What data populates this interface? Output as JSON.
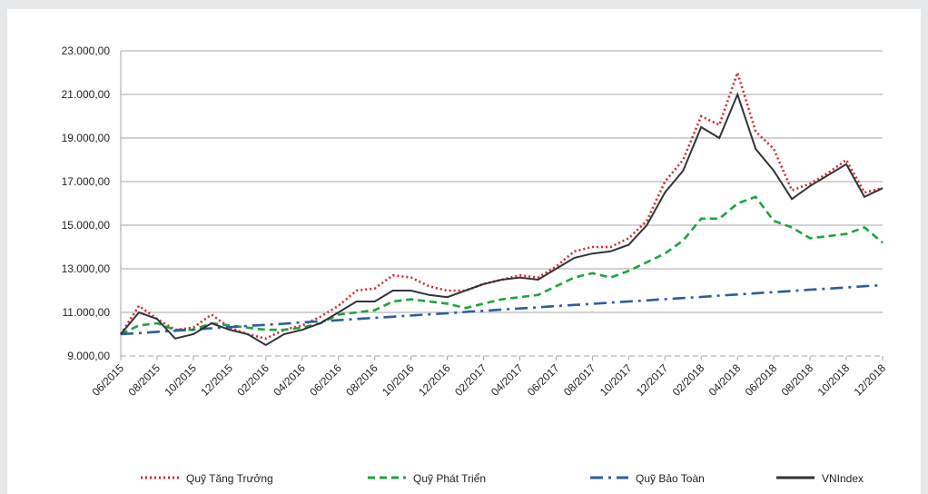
{
  "chart_data": {
    "type": "line",
    "categories": [
      "06/2015",
      null,
      "08/2015",
      null,
      "10/2015",
      null,
      "12/2015",
      null,
      "02/2016",
      null,
      "04/2016",
      null,
      "06/2016",
      null,
      "08/2016",
      null,
      "10/2016",
      null,
      "12/2016",
      null,
      "02/2017",
      null,
      "04/2017",
      null,
      "06/2017",
      null,
      "08/2017",
      null,
      "10/2017",
      null,
      "12/2017",
      null,
      "02/2018",
      null,
      "04/2018",
      null,
      "06/2018",
      null,
      "08/2018",
      null,
      "10/2018",
      null,
      "12/2018"
    ],
    "series": [
      {
        "name": "Quỹ Tăng Trưởng",
        "color": "#d7262b",
        "dash": "dotted",
        "values": [
          10000,
          11300,
          10700,
          10200,
          10300,
          10900,
          10300,
          10000,
          9800,
          10200,
          10400,
          10800,
          11300,
          12000,
          12100,
          12700,
          12600,
          12200,
          12000,
          12000,
          12300,
          12500,
          12700,
          12600,
          13100,
          13800,
          14000,
          14000,
          14400,
          15200,
          17000,
          18000,
          20000,
          19600,
          22000,
          19300,
          18500,
          16600,
          16900,
          17400,
          18000,
          16500,
          16700
        ]
      },
      {
        "name": "Quỹ Phát Triển",
        "color": "#1ea33c",
        "dash": "dashed",
        "values": [
          10000,
          10400,
          10500,
          10200,
          10200,
          10500,
          10400,
          10300,
          10200,
          10200,
          10300,
          10500,
          10900,
          11000,
          11100,
          11500,
          11600,
          11500,
          11400,
          11200,
          11400,
          11600,
          11700,
          11800,
          12200,
          12600,
          12800,
          12600,
          12900,
          13300,
          13700,
          14300,
          15300,
          15300,
          16000,
          16300,
          15200,
          14900,
          14400,
          14500,
          14600,
          14900,
          14200
        ]
      },
      {
        "name": "Quỹ Bảo Toàn",
        "color": "#2d5d9c",
        "dash": "dashdot",
        "values": [
          10000,
          10050,
          10110,
          10160,
          10210,
          10270,
          10320,
          10380,
          10430,
          10480,
          10540,
          10590,
          10640,
          10700,
          10750,
          10800,
          10860,
          10910,
          10960,
          11020,
          11070,
          11130,
          11180,
          11230,
          11290,
          11340,
          11390,
          11450,
          11500,
          11550,
          11610,
          11660,
          11710,
          11770,
          11820,
          11880,
          11930,
          11980,
          12040,
          12090,
          12140,
          12200,
          12250
        ]
      },
      {
        "name": "VNIndex",
        "color": "#333333",
        "dash": "solid",
        "values": [
          10000,
          11000,
          10700,
          9800,
          10000,
          10500,
          10200,
          10000,
          9500,
          10000,
          10200,
          10500,
          11000,
          11500,
          11500,
          12000,
          12000,
          11800,
          11700,
          12000,
          12300,
          12500,
          12600,
          12500,
          13000,
          13500,
          13700,
          13800,
          14100,
          15000,
          16500,
          17500,
          19500,
          19000,
          21000,
          18500,
          17500,
          16200,
          16800,
          17300,
          17800,
          16300,
          16700
        ]
      }
    ],
    "ylim": [
      9000,
      23000
    ],
    "yticks": [
      {
        "value": 9000,
        "label": "9.000,00"
      },
      {
        "value": 11000,
        "label": "11.000,00"
      },
      {
        "value": 13000,
        "label": "13.000,00"
      },
      {
        "value": 15000,
        "label": "15.000,00"
      },
      {
        "value": 17000,
        "label": "17.000,00"
      },
      {
        "value": 19000,
        "label": "19.000,00"
      },
      {
        "value": 21000,
        "label": "21.000,00"
      },
      {
        "value": 23000,
        "label": "23.000,00"
      }
    ],
    "grid": true,
    "legend": "bottom"
  }
}
